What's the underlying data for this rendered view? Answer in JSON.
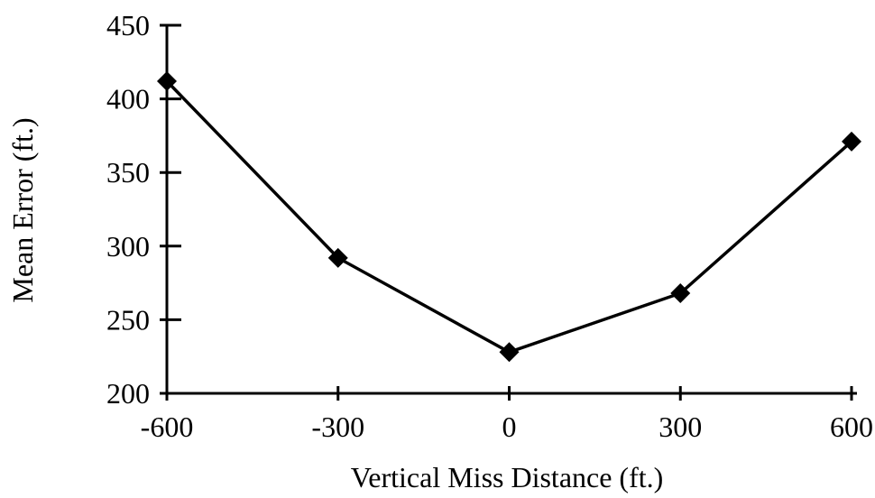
{
  "chart_data": {
    "type": "line",
    "xlabel": "Vertical Miss Distance (ft.)",
    "ylabel": "Mean Error (ft.)",
    "x": [
      -600,
      -300,
      0,
      300,
      600
    ],
    "xticks": [
      "-600",
      "-300",
      "0",
      "300",
      "600"
    ],
    "yticks": [
      "200",
      "250",
      "300",
      "350",
      "400",
      "450"
    ],
    "ylim": [
      200,
      450
    ],
    "xlim": [
      -600,
      600
    ],
    "grid": false,
    "marker": "diamond",
    "line_color": "#000000",
    "series": [
      {
        "values": [
          412,
          292,
          228,
          268,
          371
        ]
      }
    ]
  }
}
